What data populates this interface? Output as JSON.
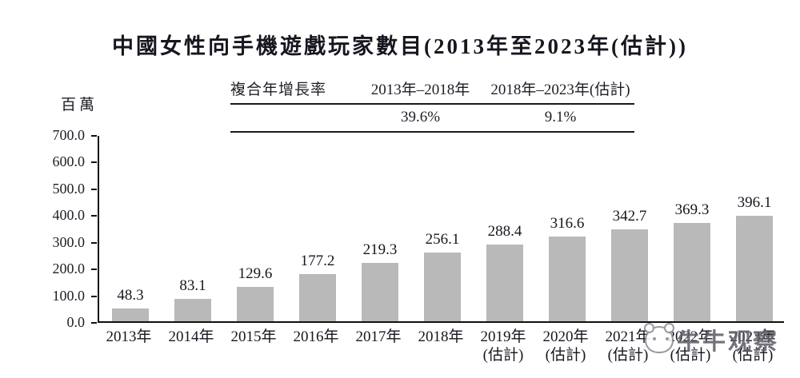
{
  "header": {
    "title": "中國女性向手機遊戲玩家數目(2013年至2023年(估計))"
  },
  "cagr": {
    "row_label": "複合年增長率",
    "periods": [
      {
        "label": "2013年–2018年",
        "value": "39.6%"
      },
      {
        "label": "2018年–2023年(估計)",
        "value": "9.1%"
      }
    ]
  },
  "chart_data": {
    "type": "bar",
    "title": "中國女性向手機遊戲玩家數目(2013年至2023年(估計))",
    "unit_label": "百萬",
    "ylabel": "百萬",
    "xlabel": "",
    "ylim": [
      0,
      700
    ],
    "ytick_labels": [
      "700.0",
      "600.0",
      "500.0",
      "400.0",
      "300.0",
      "200.0",
      "100.0",
      "0.0"
    ],
    "grid": false,
    "legend": "none",
    "categories": [
      "2013年",
      "2014年",
      "2015年",
      "2016年",
      "2017年",
      "2018年",
      "2019年",
      "2020年",
      "2021年",
      "2022年",
      "2023年"
    ],
    "sub_labels": [
      "",
      "",
      "",
      "",
      "",
      "",
      "(估計)",
      "(估計)",
      "(估計)",
      "(估計)",
      "(估計)"
    ],
    "values": [
      48.3,
      83.1,
      129.6,
      177.2,
      219.3,
      256.1,
      288.4,
      316.6,
      342.7,
      369.3,
      396.1
    ],
    "value_labels": [
      "48.3",
      "83.1",
      "129.6",
      "177.2",
      "219.3",
      "256.1",
      "288.4",
      "316.6",
      "342.7",
      "369.3",
      "396.1"
    ],
    "bar_color": "#b9b9b9",
    "axis_color": "#111111",
    "annotations": {
      "cagr_2013_2018": "39.6%",
      "cagr_2018_2023": "9.1%"
    }
  },
  "watermark": {
    "text": "牛牛观察",
    "logo": "cow-face-icon"
  }
}
